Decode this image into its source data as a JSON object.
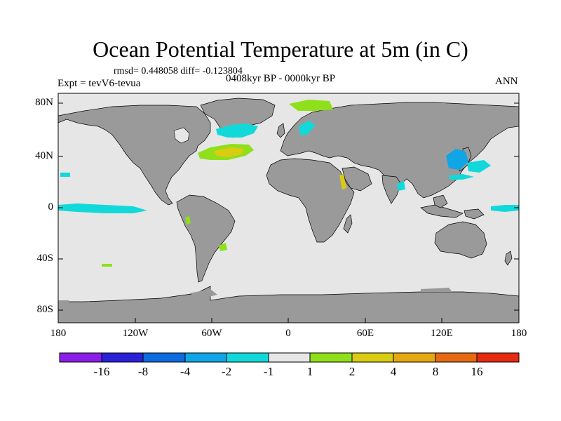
{
  "title": "Ocean Potential Temperature at 5m (in C)",
  "stats": "rmsd= 0.448058 diff= -0.123804",
  "experiment": "Expt = tevV6-tevua",
  "period": "0408kyr BP - 0000kyr BP",
  "season": "ANN",
  "y_ticks": [
    "80N",
    "40N",
    "0",
    "40S",
    "80S"
  ],
  "x_ticks": [
    "180",
    "120W",
    "60W",
    "0",
    "60E",
    "120E",
    "180"
  ],
  "colors": {
    "land": "#9a9a9a",
    "ocean_neutral": "#e6e6e6",
    "palette": [
      "#8a1ee6",
      "#2b22d8",
      "#0d6be0",
      "#10a6e6",
      "#12d9d9",
      "#e6e6e6",
      "#8fe01a",
      "#d9cc12",
      "#e6a812",
      "#e66a12",
      "#e62a12"
    ]
  },
  "colorbar_labels": [
    "-16",
    "-8",
    "-4",
    "-2",
    "-1",
    "1",
    "2",
    "4",
    "8",
    "16"
  ]
}
